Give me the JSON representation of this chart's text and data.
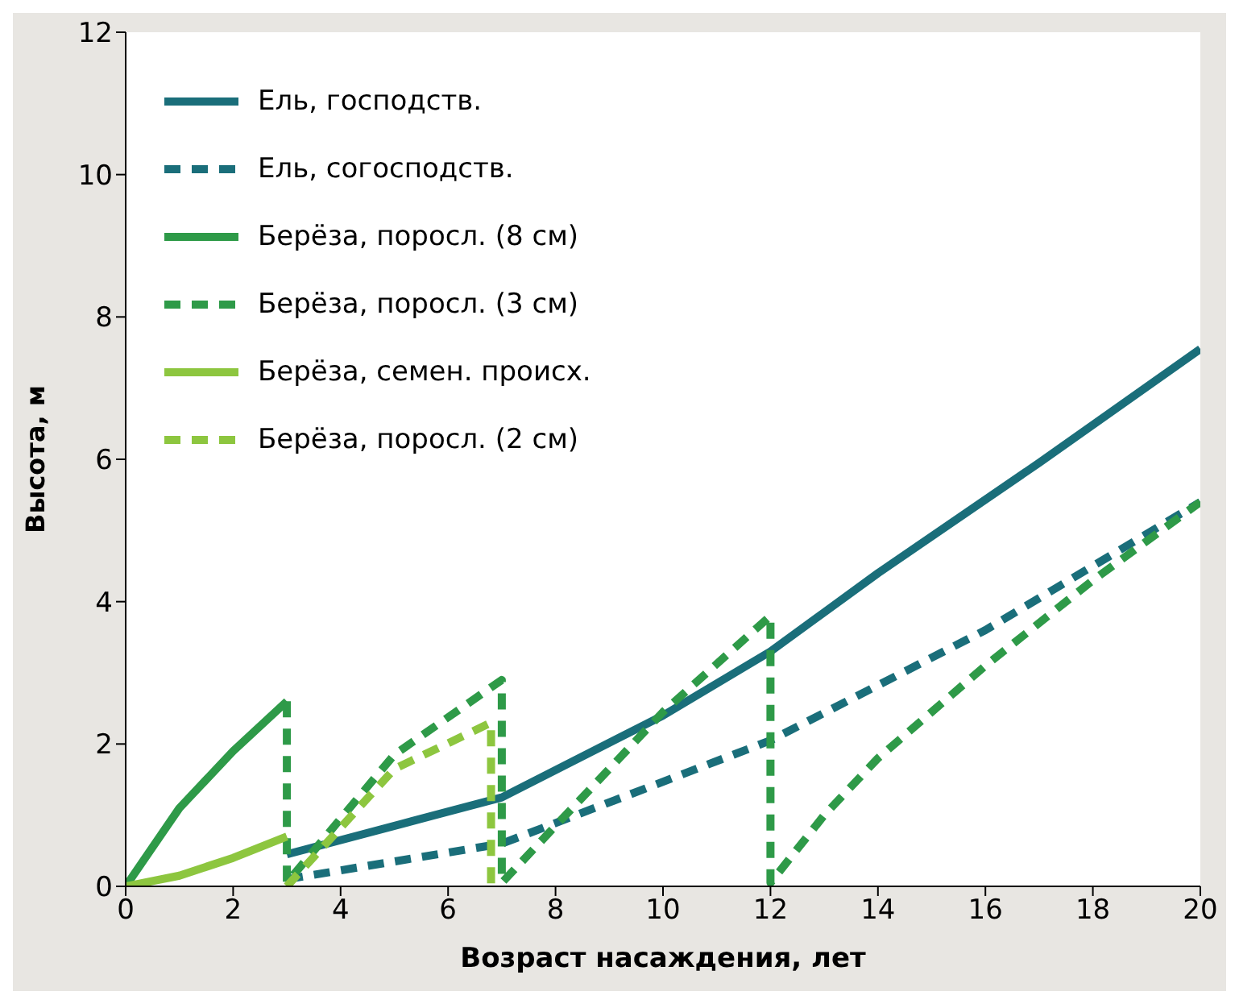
{
  "chart_data": {
    "type": "line",
    "xlabel": "Возраст насаждения, лет",
    "ylabel": "Высота, м",
    "xlim": [
      0,
      20
    ],
    "ylim": [
      0,
      12
    ],
    "xticks": [
      0,
      2,
      4,
      6,
      8,
      10,
      12,
      14,
      16,
      18,
      20
    ],
    "yticks": [
      0,
      2,
      4,
      6,
      8,
      10,
      12
    ],
    "grid": false,
    "legend": "top left",
    "marker": "none",
    "series": [
      {
        "name": "Ель, господств.",
        "color": "#1a6e7a",
        "line_style": "solid",
        "x": [
          3,
          7,
          10,
          12,
          14,
          17,
          20
        ],
        "values": [
          0.45,
          1.25,
          2.4,
          3.3,
          4.4,
          5.95,
          7.55
        ]
      },
      {
        "name": "Ель, согосподств.",
        "color": "#1a6e7a",
        "line_style": "dashed",
        "x": [
          3,
          7,
          12,
          16,
          18,
          20
        ],
        "values": [
          0.1,
          0.6,
          2.05,
          3.6,
          4.5,
          5.4
        ]
      },
      {
        "name": "Берёза, поросл. (8 см)",
        "color": "#2e9a48",
        "line_style": "solid",
        "x": [
          0,
          1,
          2,
          3
        ],
        "values": [
          0,
          1.1,
          1.9,
          2.6
        ]
      },
      {
        "name": "Берёза, поросл. (3 см)",
        "color": "#2e9a48",
        "line_style": "dashed",
        "x": [
          3,
          3,
          5,
          7,
          7,
          10,
          12,
          12,
          13,
          14,
          16,
          18,
          20
        ],
        "values": [
          2.6,
          0.05,
          1.85,
          2.9,
          0.05,
          2.45,
          3.8,
          0.05,
          1.0,
          1.8,
          3.1,
          4.3,
          5.4
        ]
      },
      {
        "name": "Берёза, семен. происх.",
        "color": "#8dc63f",
        "line_style": "solid",
        "x": [
          0,
          1,
          2,
          3
        ],
        "values": [
          0,
          0.15,
          0.4,
          0.7
        ]
      },
      {
        "name": "Берёза, поросл. (2 см)",
        "color": "#8dc63f",
        "line_style": "dashed",
        "x": [
          3,
          5,
          6.8,
          6.8
        ],
        "values": [
          0,
          1.65,
          2.3,
          0
        ]
      }
    ]
  }
}
